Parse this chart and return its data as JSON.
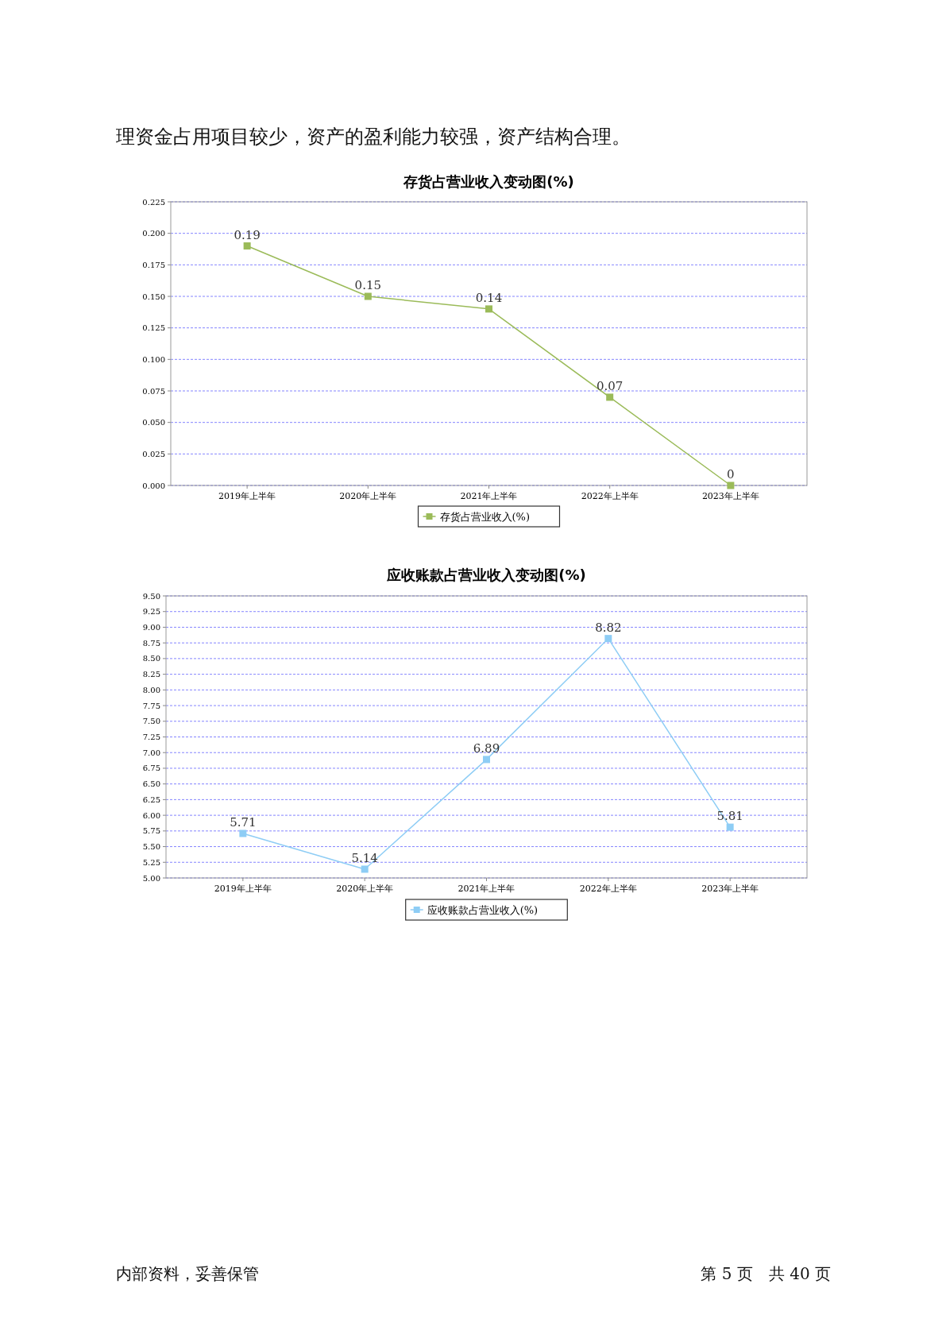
{
  "chart_data": [
    {
      "type": "line",
      "title": "存货占营业收入变动图(%)",
      "categories": [
        "2019年上半年",
        "2020年上半年",
        "2021年上半年",
        "2022年上半年",
        "2023年上半年"
      ],
      "series": [
        {
          "name": "存货占营业收入(%)",
          "color": "#9bbb59",
          "values": [
            0.19,
            0.15,
            0.14,
            0.07,
            0
          ]
        }
      ],
      "ylim": [
        0,
        0.225
      ],
      "yticks": [
        {
          "value": 0,
          "label": "0.000"
        },
        {
          "value": 0.025,
          "label": "0.025"
        },
        {
          "value": 0.05,
          "label": "0.050"
        },
        {
          "value": 0.075,
          "label": "0.075"
        },
        {
          "value": 0.1,
          "label": "0.100"
        },
        {
          "value": 0.125,
          "label": "0.125"
        },
        {
          "value": 0.15,
          "label": "0.150"
        },
        {
          "value": 0.175,
          "label": "0.175"
        },
        {
          "value": 0.2,
          "label": "0.200"
        },
        {
          "value": 0.225,
          "label": "0.225"
        }
      ],
      "grid": "y",
      "legend": "bottom",
      "marker": "square",
      "line_style": "solid",
      "data_labels": true,
      "annotations": [
        "理资金占用项目较少，资产的盈利能力较强，资产结构合理。"
      ]
    },
    {
      "type": "line",
      "title": "应收账款占营业收入变动图(%)",
      "categories": [
        "2019年上半年",
        "2020年上半年",
        "2021年上半年",
        "2022年上半年",
        "2023年上半年"
      ],
      "series": [
        {
          "name": "应收账款占营业收入(%)",
          "color": "#8ecdf5",
          "values": [
            5.71,
            5.14,
            6.89,
            8.82,
            5.81
          ]
        }
      ],
      "ylim": [
        5,
        9.5
      ],
      "yticks": [
        {
          "value": 5,
          "label": "5.00"
        },
        {
          "value": 5.25,
          "label": "5.25"
        },
        {
          "value": 5.5,
          "label": "5.50"
        },
        {
          "value": 5.75,
          "label": "5.75"
        },
        {
          "value": 6,
          "label": "6.00"
        },
        {
          "value": 6.25,
          "label": "6.25"
        },
        {
          "value": 6.5,
          "label": "6.50"
        },
        {
          "value": 6.75,
          "label": "6.75"
        },
        {
          "value": 7,
          "label": "7.00"
        },
        {
          "value": 7.25,
          "label": "7.25"
        },
        {
          "value": 7.5,
          "label": "7.50"
        },
        {
          "value": 7.75,
          "label": "7.75"
        },
        {
          "value": 8,
          "label": "8.00"
        },
        {
          "value": 8.25,
          "label": "8.25"
        },
        {
          "value": 8.5,
          "label": "8.50"
        },
        {
          "value": 8.75,
          "label": "8.75"
        },
        {
          "value": 9,
          "label": "9.00"
        },
        {
          "value": 9.25,
          "label": "9.25"
        },
        {
          "value": 9.5,
          "label": "9.50"
        }
      ],
      "grid": "y",
      "legend": "bottom",
      "marker": "square",
      "line_style": "solid",
      "data_labels": true,
      "annotations": [
        "内部资料，妥善保管",
        "第 5 页　共 40 页"
      ]
    }
  ]
}
